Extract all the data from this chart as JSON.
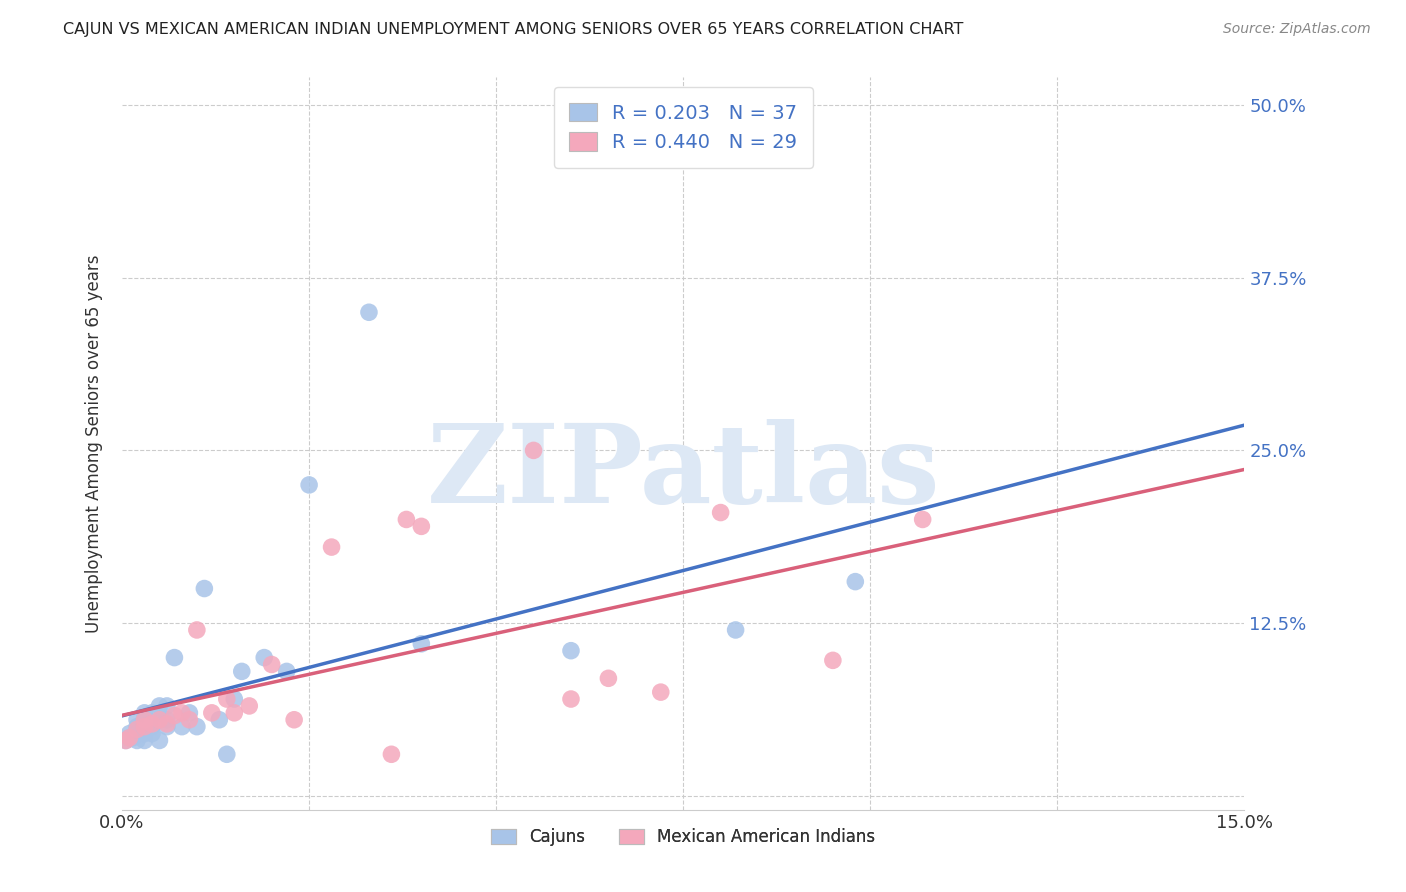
{
  "title": "CAJUN VS MEXICAN AMERICAN INDIAN UNEMPLOYMENT AMONG SENIORS OVER 65 YEARS CORRELATION CHART",
  "source": "Source: ZipAtlas.com",
  "ylabel": "Unemployment Among Seniors over 65 years",
  "xlim": [
    0.0,
    0.15
  ],
  "ylim": [
    -0.01,
    0.52
  ],
  "yticks": [
    0.0,
    0.125,
    0.25,
    0.375,
    0.5
  ],
  "ytick_labels": [
    "",
    "12.5%",
    "25.0%",
    "37.5%",
    "50.0%"
  ],
  "cajun_color": "#a8c4e8",
  "mexican_color": "#f4a8bc",
  "cajun_line_color": "#4472c4",
  "mexican_line_color": "#d9607a",
  "cajun_R": 0.203,
  "cajun_N": 37,
  "mexican_R": 0.44,
  "mexican_N": 29,
  "legend_label_cajun": "Cajuns",
  "legend_label_mexican": "Mexican American Indians",
  "cajun_x": [
    0.0005,
    0.001,
    0.001,
    0.0015,
    0.002,
    0.002,
    0.002,
    0.003,
    0.003,
    0.003,
    0.003,
    0.004,
    0.004,
    0.004,
    0.005,
    0.005,
    0.005,
    0.006,
    0.006,
    0.006,
    0.007,
    0.008,
    0.009,
    0.01,
    0.011,
    0.013,
    0.014,
    0.015,
    0.016,
    0.019,
    0.022,
    0.025,
    0.033,
    0.04,
    0.06,
    0.082,
    0.098
  ],
  "cajun_y": [
    0.04,
    0.042,
    0.045,
    0.042,
    0.04,
    0.05,
    0.055,
    0.04,
    0.045,
    0.055,
    0.06,
    0.045,
    0.05,
    0.06,
    0.04,
    0.055,
    0.065,
    0.05,
    0.055,
    0.065,
    0.1,
    0.05,
    0.06,
    0.05,
    0.15,
    0.055,
    0.03,
    0.07,
    0.09,
    0.1,
    0.09,
    0.225,
    0.35,
    0.11,
    0.105,
    0.12,
    0.155
  ],
  "mexican_x": [
    0.0005,
    0.001,
    0.002,
    0.003,
    0.003,
    0.004,
    0.005,
    0.006,
    0.007,
    0.008,
    0.009,
    0.01,
    0.012,
    0.014,
    0.015,
    0.017,
    0.02,
    0.023,
    0.028,
    0.036,
    0.038,
    0.04,
    0.055,
    0.06,
    0.065,
    0.072,
    0.08,
    0.095,
    0.107
  ],
  "mexican_y": [
    0.04,
    0.042,
    0.048,
    0.05,
    0.055,
    0.052,
    0.055,
    0.052,
    0.058,
    0.06,
    0.055,
    0.12,
    0.06,
    0.07,
    0.06,
    0.065,
    0.095,
    0.055,
    0.18,
    0.03,
    0.2,
    0.195,
    0.25,
    0.07,
    0.085,
    0.075,
    0.205,
    0.098,
    0.2
  ]
}
